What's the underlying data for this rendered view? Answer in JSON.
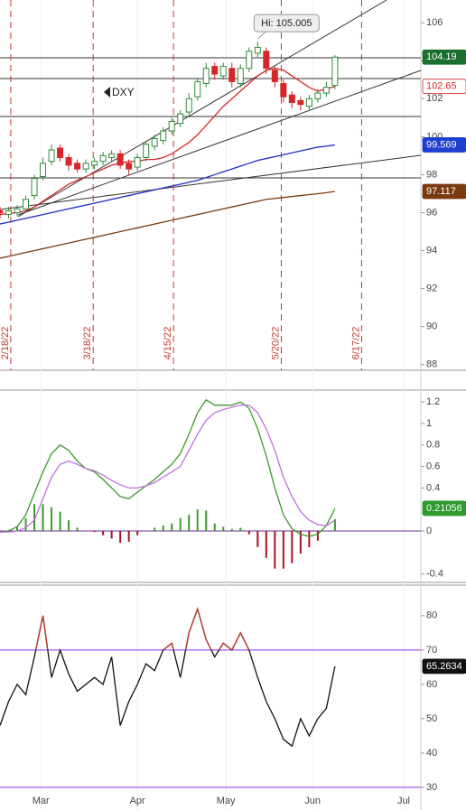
{
  "chart_data": [
    {
      "type": "candlestick",
      "title": "DXY",
      "high_label": "Hi: 105.005",
      "x": [
        0,
        2,
        4,
        6,
        8,
        10,
        12,
        14,
        16,
        18,
        20,
        22,
        24,
        26,
        28,
        30,
        32,
        34,
        36,
        38,
        40,
        42,
        44,
        46,
        48,
        50,
        52,
        54,
        56,
        58,
        60,
        62,
        64,
        66,
        68,
        70,
        72,
        74,
        76,
        78
      ],
      "open": [
        96.1,
        95.9,
        96.0,
        96.2,
        96.9,
        97.9,
        98.7,
        99.4,
        98.9,
        98.6,
        98.3,
        98.5,
        98.7,
        98.9,
        99.1,
        98.6,
        98.4,
        98.9,
        99.5,
        99.8,
        100.3,
        100.7,
        101.3,
        102.1,
        102.8,
        103.7,
        103.2,
        103.6,
        102.8,
        103.6,
        104.4,
        104.5,
        103.5,
        102.8,
        102.2,
        101.9,
        101.6,
        102.0,
        102.3,
        102.7
      ],
      "high": [
        96.3,
        96.3,
        96.4,
        96.9,
        98.0,
        98.9,
        99.6,
        99.6,
        99.1,
        98.8,
        98.8,
        98.9,
        99.2,
        99.3,
        99.3,
        98.8,
        99.1,
        99.8,
        100.1,
        100.5,
        101.0,
        101.4,
        102.3,
        103.1,
        103.9,
        103.9,
        103.9,
        103.9,
        103.8,
        104.7,
        105.005,
        104.7,
        103.7,
        103.0,
        102.4,
        102.1,
        102.2,
        102.5,
        102.9,
        104.3
      ],
      "low": [
        95.7,
        95.7,
        95.8,
        96.0,
        96.7,
        97.7,
        98.5,
        98.7,
        98.2,
        98.1,
        98.1,
        98.3,
        98.5,
        98.7,
        98.3,
        98.0,
        98.2,
        98.7,
        99.3,
        99.6,
        100.1,
        100.5,
        101.1,
        101.9,
        102.6,
        103.0,
        103.0,
        102.6,
        102.6,
        103.4,
        104.2,
        103.3,
        102.6,
        101.8,
        101.5,
        101.4,
        101.4,
        101.8,
        102.1,
        102.5
      ],
      "close": [
        96.0,
        96.1,
        96.2,
        96.7,
        97.8,
        98.6,
        99.3,
        98.9,
        98.5,
        98.3,
        98.6,
        98.7,
        99.0,
        99.1,
        98.5,
        98.3,
        98.9,
        99.6,
        99.9,
        100.3,
        100.8,
        101.2,
        102.0,
        102.9,
        103.6,
        103.3,
        103.7,
        102.9,
        103.6,
        104.5,
        104.7,
        103.6,
        102.9,
        102.1,
        101.8,
        101.7,
        102.0,
        102.3,
        102.6,
        104.19
      ],
      "up_color": "#2e8b3a",
      "down_color": "#d62728",
      "overlays": [
        {
          "color": "#1f2fbf",
          "values": [
            95.4,
            95.5,
            95.6,
            95.7,
            95.8,
            95.9,
            96.0,
            96.1,
            96.2,
            96.3,
            96.4,
            96.5,
            96.6,
            96.7,
            96.8,
            96.9,
            97.0,
            97.1,
            97.2,
            97.3,
            97.4,
            97.5,
            97.6,
            97.7,
            97.85,
            98.0,
            98.15,
            98.3,
            98.45,
            98.6,
            98.75,
            98.85,
            98.95,
            99.05,
            99.15,
            99.25,
            99.35,
            99.45,
            99.5,
            99.569
          ]
        },
        {
          "color": "#7a3a10",
          "values": [
            93.6,
            93.7,
            93.8,
            93.9,
            94.0,
            94.1,
            94.2,
            94.3,
            94.4,
            94.5,
            94.6,
            94.7,
            94.8,
            94.9,
            95.0,
            95.1,
            95.2,
            95.3,
            95.4,
            95.5,
            95.6,
            95.7,
            95.8,
            95.9,
            96.0,
            96.1,
            96.2,
            96.3,
            96.4,
            96.5,
            96.6,
            96.7,
            96.75,
            96.8,
            96.85,
            96.9,
            96.95,
            97.0,
            97.05,
            97.117
          ]
        },
        {
          "color": "#d62728",
          "values": [
            95.9,
            95.95,
            96.0,
            96.1,
            96.3,
            96.6,
            96.9,
            97.2,
            97.5,
            97.7,
            97.9,
            98.1,
            98.3,
            98.5,
            98.6,
            98.7,
            98.7,
            98.8,
            98.8,
            98.9,
            99.1,
            99.4,
            99.7,
            100.1,
            100.6,
            101.1,
            101.6,
            102.0,
            102.4,
            102.8,
            103.2,
            103.5,
            103.6,
            103.5,
            103.2,
            102.9,
            102.6,
            102.4,
            102.5,
            102.65
          ]
        }
      ],
      "last_labels": [
        {
          "value": 104.19,
          "color": "#1b6e2d",
          "text_color": "#ffffff"
        },
        {
          "value": 102.65,
          "color": "#ffffff",
          "text_color": "#d62728"
        },
        {
          "value": 99.569,
          "color": "#1f3fcf",
          "text_color": "#ffffff"
        },
        {
          "value": 97.117,
          "color": "#7a3a10",
          "text_color": "#ffffff"
        }
      ],
      "date_markers": [
        {
          "value": 2.5,
          "label": "2/18/22"
        },
        {
          "value": 21.7,
          "label": "3/18/22"
        },
        {
          "value": 40.4,
          "label": "4/15/22"
        },
        {
          "value": 65.5,
          "label": "5/20/22"
        },
        {
          "value": 84.2,
          "label": "6/17/22"
        }
      ],
      "marker_color": "#c0392b",
      "xlim": [
        0,
        98
      ],
      "ylim": [
        87.7,
        107.2
      ],
      "yticks": [
        88,
        90,
        92,
        94,
        96,
        98,
        100,
        102,
        104,
        106
      ]
    },
    {
      "type": "macd",
      "x": [
        0,
        2,
        4,
        6,
        8,
        10,
        12,
        14,
        16,
        18,
        20,
        22,
        24,
        26,
        28,
        30,
        32,
        34,
        36,
        38,
        40,
        42,
        44,
        46,
        48,
        50,
        52,
        54,
        56,
        58,
        60,
        62,
        64,
        66,
        68,
        70,
        72,
        74,
        76,
        78
      ],
      "series": [
        {
          "color": "#3a9a2a",
          "values": [
            -0.01,
            0.0,
            0.04,
            0.15,
            0.35,
            0.55,
            0.72,
            0.8,
            0.75,
            0.65,
            0.58,
            0.55,
            0.48,
            0.4,
            0.32,
            0.3,
            0.36,
            0.42,
            0.48,
            0.55,
            0.62,
            0.72,
            0.9,
            1.1,
            1.22,
            1.17,
            1.17,
            1.17,
            1.2,
            1.14,
            0.95,
            0.7,
            0.4,
            0.15,
            0.02,
            -0.03,
            -0.05,
            -0.03,
            0.05,
            0.21
          ]
        },
        {
          "color": "#c070e0",
          "values": [
            -0.01,
            -0.01,
            0.0,
            0.03,
            0.1,
            0.3,
            0.5,
            0.62,
            0.65,
            0.62,
            0.58,
            0.56,
            0.52,
            0.47,
            0.43,
            0.4,
            0.4,
            0.42,
            0.45,
            0.5,
            0.55,
            0.6,
            0.75,
            0.9,
            1.03,
            1.1,
            1.13,
            1.15,
            1.17,
            1.17,
            1.1,
            0.95,
            0.75,
            0.5,
            0.32,
            0.18,
            0.1,
            0.06,
            0.05,
            0.1
          ]
        }
      ],
      "histogram": {
        "up_color": "#3a9a2a",
        "down_color": "#b01020",
        "values": [
          0,
          0.01,
          0.04,
          0.12,
          0.25,
          0.25,
          0.22,
          0.18,
          0.1,
          0.03,
          0,
          -0.01,
          -0.04,
          -0.07,
          -0.11,
          -0.1,
          -0.04,
          0,
          0.03,
          0.05,
          0.07,
          0.12,
          0.15,
          0.2,
          0.19,
          0.07,
          0.04,
          0.02,
          0.03,
          -0.03,
          -0.15,
          -0.25,
          -0.35,
          -0.35,
          -0.3,
          -0.21,
          -0.15,
          -0.09,
          0,
          0.11
        ]
      },
      "levels": [
        0
      ],
      "level_color": "#6a2f8f",
      "last_labels": [
        {
          "value": 0.21056,
          "color": "#2e9a2e",
          "text_color": "#ffffff"
        }
      ],
      "xlim": [
        0,
        98
      ],
      "ylim": [
        -0.47,
        1.31
      ],
      "yticks": [
        -0.4,
        0,
        0.4,
        0.6,
        0.8,
        1,
        1.2
      ]
    },
    {
      "type": "line",
      "x": [
        0,
        2,
        4,
        6,
        8,
        10,
        12,
        14,
        16,
        18,
        20,
        22,
        24,
        26,
        28,
        30,
        32,
        34,
        36,
        38,
        40,
        42,
        44,
        46,
        48,
        50,
        52,
        54,
        56,
        58,
        60,
        62,
        64,
        66,
        68,
        70,
        72,
        74,
        76,
        78
      ],
      "series": [
        {
          "color": "#111111",
          "values": [
            48,
            55,
            60,
            57,
            68,
            80,
            62,
            70,
            63,
            58,
            60,
            62,
            60,
            68,
            48,
            55,
            60,
            66,
            64,
            70,
            72,
            62,
            75,
            82,
            73,
            68,
            72,
            70,
            75,
            70,
            62,
            55,
            50,
            44,
            42,
            50,
            45,
            50,
            53,
            65.2634
          ]
        }
      ],
      "overbought": 70,
      "overbought_color": "#c0392b",
      "levels": [
        70,
        30
      ],
      "level_color": "#8a2be2",
      "last_labels": [
        {
          "value": 65.2634,
          "color": "#111111",
          "text_color": "#ffffff"
        }
      ],
      "xlim": [
        0,
        98
      ],
      "ylim": [
        23.4,
        88.9
      ],
      "yticks": [
        30,
        40,
        50,
        60,
        70,
        80
      ],
      "xticks": [
        {
          "value": 9.5,
          "label": "Mar"
        },
        {
          "value": 32,
          "label": "Apr"
        },
        {
          "value": 52.6,
          "label": "May"
        },
        {
          "value": 72.8,
          "label": "Jun"
        },
        {
          "value": 94,
          "label": "Jul"
        }
      ]
    }
  ]
}
